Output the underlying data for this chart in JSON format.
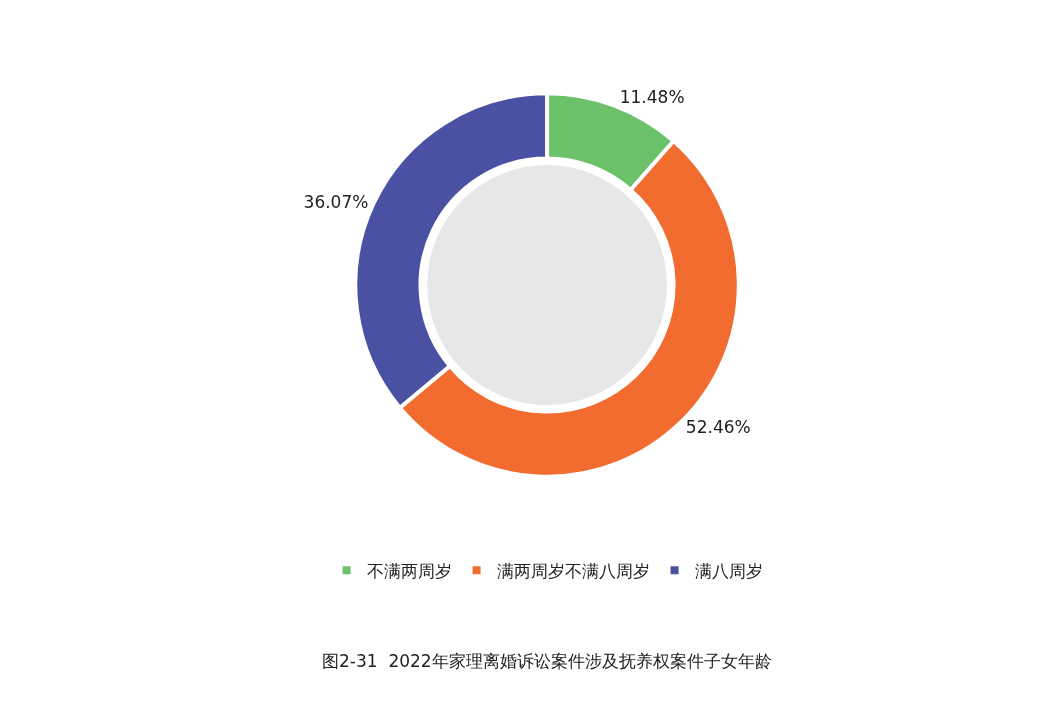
{
  "chart_data": {
    "type": "donut",
    "title": "图2-31  2022年家理离婚诉讼案件涉及抚养权案件子女年龄",
    "categories": [
      "不满两周岁",
      "满两周岁不满八周岁",
      "满八周岁"
    ],
    "values": [
      11.48,
      52.46,
      36.07
    ],
    "colors": [
      "#6cc16b",
      "#f26b2f",
      "#4a51a3"
    ],
    "value_labels": [
      "11.48%",
      "52.46%",
      "36.07%"
    ],
    "legend": "bottom"
  }
}
